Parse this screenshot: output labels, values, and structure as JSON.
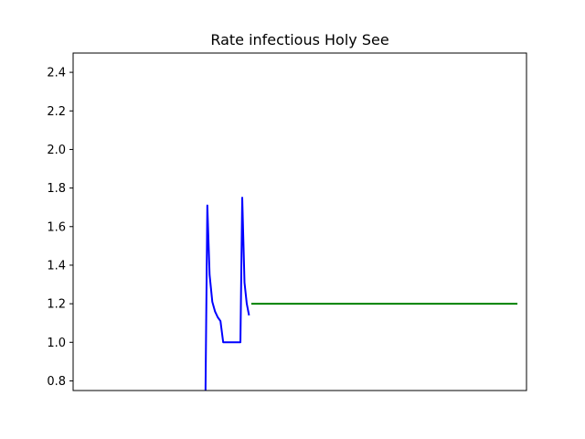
{
  "chart_data": {
    "type": "line",
    "title": "Rate infectious Holy See",
    "xlabel": "",
    "ylabel": "",
    "ylim": [
      0.75,
      2.5
    ],
    "yticks": [
      "0.8",
      "1.0",
      "1.2",
      "1.4",
      "1.6",
      "1.8",
      "2.0",
      "2.2",
      "2.4"
    ],
    "xlim": [
      0,
      100
    ],
    "x_ticks_visible": false,
    "grid": false,
    "legend": "none",
    "series": [
      {
        "color": "#0000ff",
        "x": [
          29.2,
          29.6,
          30.1,
          30.7,
          31.3,
          31.9,
          32.5,
          33.1,
          36.9,
          37.3,
          37.8,
          38.3,
          38.8
        ],
        "y": [
          0.75,
          1.71,
          1.35,
          1.21,
          1.16,
          1.13,
          1.11,
          1.0,
          1.0,
          1.75,
          1.31,
          1.2,
          1.14
        ]
      },
      {
        "color": "#008000",
        "x": [
          39.3,
          98.0
        ],
        "y": [
          1.2,
          1.2
        ]
      }
    ]
  }
}
